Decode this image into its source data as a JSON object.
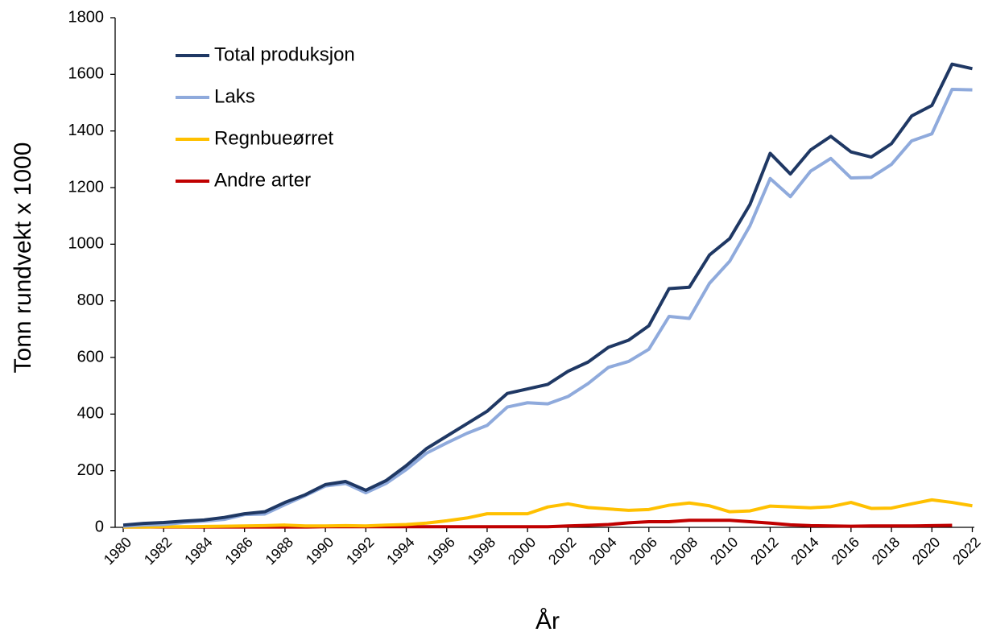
{
  "chart_data": {
    "type": "line",
    "x_label": "År",
    "y_label": "Tonn rundvekt x 1000",
    "x": [
      1980,
      1981,
      1982,
      1983,
      1984,
      1985,
      1986,
      1987,
      1988,
      1989,
      1990,
      1991,
      1992,
      1993,
      1994,
      1995,
      1996,
      1997,
      1998,
      1999,
      2000,
      2001,
      2002,
      2003,
      2004,
      2005,
      2006,
      2007,
      2008,
      2009,
      2010,
      2011,
      2012,
      2013,
      2014,
      2015,
      2016,
      2017,
      2018,
      2019,
      2020,
      2021,
      2022
    ],
    "xlim": [
      1979.6,
      2022.1
    ],
    "xticks": [
      1980,
      1982,
      1984,
      1986,
      1988,
      1990,
      1992,
      1994,
      1996,
      1998,
      2000,
      2002,
      2004,
      2006,
      2008,
      2010,
      2012,
      2014,
      2016,
      2018,
      2020,
      2022
    ],
    "ylim": [
      0,
      1800
    ],
    "yticks": [
      0,
      200,
      400,
      600,
      800,
      1000,
      1200,
      1400,
      1600,
      1800
    ],
    "grid": false,
    "legend": "upper left",
    "series": [
      {
        "name": "Total produksjon",
        "color": "#1f3864",
        "values": [
          8,
          14,
          17,
          22,
          26,
          35,
          48,
          55,
          88,
          115,
          151,
          162,
          131,
          165,
          218,
          278,
          322,
          366,
          410,
          473,
          489,
          505,
          551,
          584,
          636,
          661,
          712,
          843,
          848,
          962,
          1020,
          1140,
          1321,
          1248,
          1333,
          1381,
          1326,
          1308,
          1355,
          1453,
          1490,
          1636,
          1620
        ]
      },
      {
        "name": "Laks",
        "color": "#8faadc",
        "values": [
          4,
          8,
          10,
          17,
          22,
          28,
          45,
          47,
          80,
          112,
          146,
          155,
          122,
          155,
          204,
          262,
          298,
          332,
          360,
          425,
          440,
          436,
          462,
          508,
          565,
          586,
          629,
          745,
          738,
          862,
          940,
          1065,
          1232,
          1168,
          1258,
          1303,
          1234,
          1236,
          1282,
          1365,
          1390,
          1547,
          1545
        ]
      },
      {
        "name": "Regnbueørret",
        "color": "#ffc000",
        "values": [
          1,
          1,
          2,
          2,
          3,
          4,
          5,
          6,
          8,
          5,
          5,
          6,
          5,
          8,
          10,
          15,
          23,
          33,
          48,
          48,
          48,
          72,
          83,
          70,
          65,
          60,
          63,
          78,
          86,
          76,
          55,
          58,
          75,
          72,
          69,
          73,
          88,
          67,
          68,
          83,
          97,
          88,
          76
        ]
      },
      {
        "name": "Andre arter",
        "color": "#c00000",
        "values": [
          1,
          1,
          1,
          1,
          1,
          1,
          1,
          1,
          1,
          1,
          2,
          2,
          2,
          2,
          2,
          2,
          2,
          2,
          2,
          2,
          2,
          2,
          5,
          7,
          10,
          16,
          20,
          20,
          25,
          25,
          25,
          20,
          15,
          9,
          6,
          5,
          4,
          5,
          5,
          5,
          6,
          7,
          null
        ]
      }
    ]
  }
}
